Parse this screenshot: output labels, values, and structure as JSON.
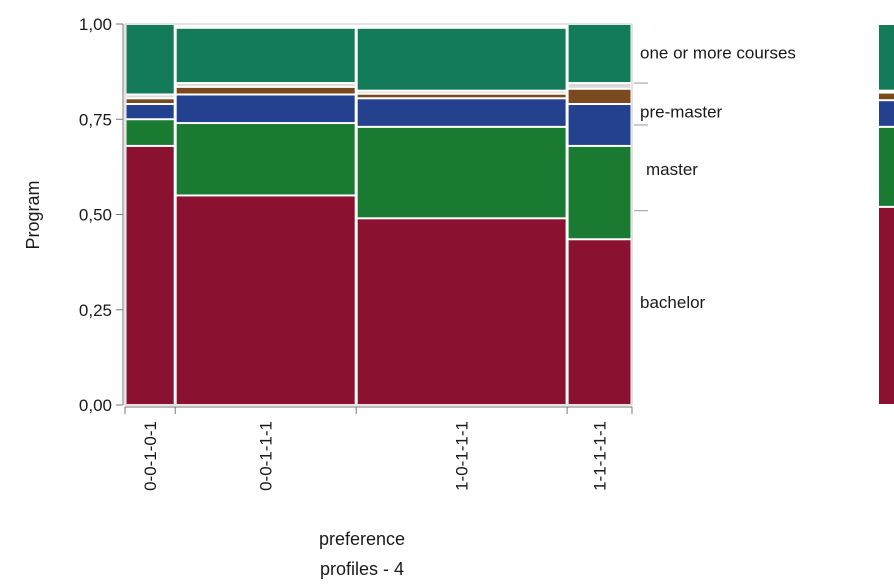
{
  "chart_data": {
    "type": "mosaic",
    "title": "",
    "xlabel": [
      "preference",
      "profiles - 4"
    ],
    "ylabel": "Program",
    "ylim": [
      0,
      1
    ],
    "yticks": [
      "0,00",
      "0,25",
      "0,50",
      "0,75",
      "1,00"
    ],
    "categories": [
      "0-0-1-0-1",
      "0-0-1-1-1",
      "1-0-1-1-1",
      "1-1-1-1-1"
    ],
    "category_widths": [
      0.099,
      0.357,
      0.416,
      0.128
    ],
    "series": [
      {
        "name": "bachelor",
        "color": "#8b1130",
        "values": [
          0.68,
          0.55,
          0.49,
          0.435
        ]
      },
      {
        "name": "master",
        "color": "#1b7a31",
        "values": [
          0.07,
          0.19,
          0.24,
          0.245
        ]
      },
      {
        "name": "pre-master",
        "color": "#24418f",
        "values": [
          0.04,
          0.075,
          0.075,
          0.11
        ]
      },
      {
        "name": "",
        "color": "#7a4a1e",
        "values": [
          0.015,
          0.02,
          0.012,
          0.04
        ]
      },
      {
        "name": "",
        "color": "#d9d9d9",
        "values": [
          0.01,
          0.01,
          0.008,
          0.015
        ]
      },
      {
        "name": "one or more courses",
        "color": "#137a5a",
        "values": [
          0.185,
          0.145,
          0.165,
          0.155
        ]
      }
    ],
    "legend_placement": "right",
    "overall_strip": [
      0.52,
      0.21,
      0.07,
      0.02,
      0.005,
      0.175
    ],
    "grid": false
  }
}
